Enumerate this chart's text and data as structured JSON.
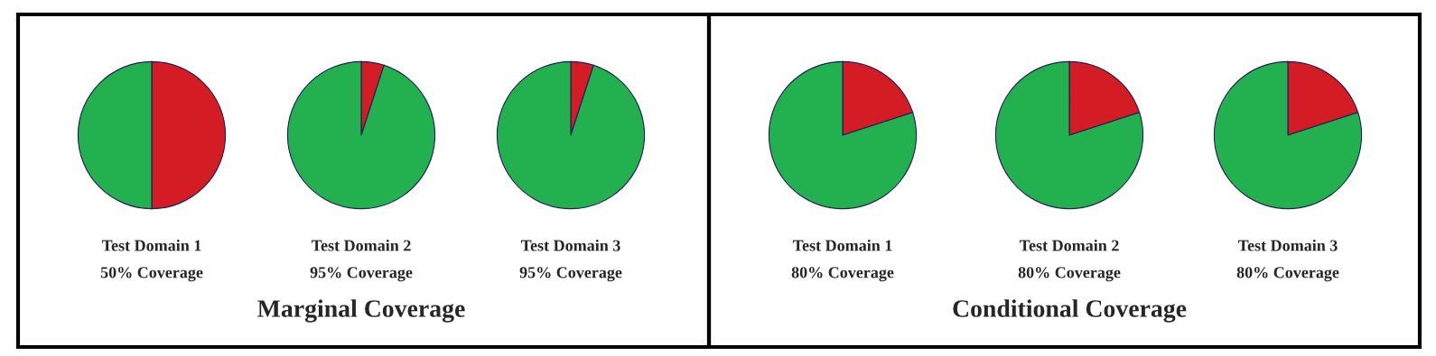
{
  "chart_data": [
    {
      "type": "pie",
      "title": "Test Domain 1",
      "subtitle": "50% Coverage",
      "categories": [
        null,
        null
      ],
      "values": [
        50,
        50
      ],
      "colors": [
        "#d31c23",
        "#23b04e"
      ]
    },
    {
      "type": "pie",
      "title": "Test Domain 2",
      "subtitle": "95% Coverage",
      "categories": [
        null,
        null
      ],
      "values": [
        5,
        95
      ],
      "colors": [
        "#d31c23",
        "#23b04e"
      ],
      "annotations": [
        "Marginal Coverage"
      ]
    },
    {
      "type": "pie",
      "title": "Test Domain 3",
      "subtitle": "95% Coverage",
      "categories": [
        null,
        null
      ],
      "values": [
        5,
        95
      ],
      "colors": [
        "#d31c23",
        "#23b04e"
      ]
    },
    {
      "type": "pie",
      "title": "Test Domain 1",
      "subtitle": "80% Coverage",
      "categories": [
        null,
        null
      ],
      "values": [
        20,
        80
      ],
      "colors": [
        "#d31c23",
        "#23b04e"
      ]
    },
    {
      "type": "pie",
      "title": "Test Domain 2",
      "subtitle": "80% Coverage",
      "categories": [
        null,
        null
      ],
      "values": [
        20,
        80
      ],
      "colors": [
        "#d31c23",
        "#23b04e"
      ],
      "annotations": [
        "Conditional Coverage"
      ]
    },
    {
      "type": "pie",
      "title": "Test Domain 3",
      "subtitle": "80% Coverage",
      "categories": [
        null,
        null
      ],
      "values": [
        20,
        80
      ],
      "colors": [
        "#d31c23",
        "#23b04e"
      ]
    }
  ]
}
